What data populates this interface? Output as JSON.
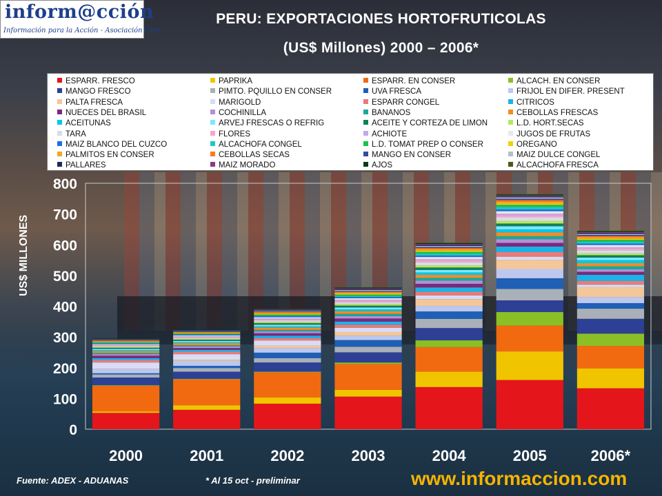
{
  "logo": {
    "name": "inform@cción",
    "tagline": "Información para la Acción - Asociación Civil"
  },
  "title_line1": "PERU: EXPORTACIONES HORTOFRUTICOLAS",
  "title_line2": "(US$ Millones) 2000 – 2006*",
  "source": "Fuente: ADEX - ADUANAS",
  "note": "* Al 15 oct - preliminar",
  "website": "www.informaccion.com",
  "chart_data": {
    "type": "bar",
    "stacked": true,
    "title": "PERU: EXPORTACIONES HORTOFRUTICOLAS (US$ Millones) 2000 – 2006*",
    "ylabel": "US$ MILLONES",
    "xlabel": "",
    "ylim": [
      0,
      800
    ],
    "yticks": [
      0,
      100,
      200,
      300,
      400,
      500,
      600,
      700,
      800
    ],
    "grid": false,
    "legend_position": "top",
    "categories": [
      "2000",
      "2001",
      "2002",
      "2003",
      "2004",
      "2005",
      "2006*"
    ],
    "series": [
      {
        "name": "ESPARR. FRESCO",
        "color": "#e4161b",
        "values": [
          53,
          63,
          83,
          106,
          137,
          160,
          133
        ]
      },
      {
        "name": "PAPRIKA",
        "color": "#f1c400",
        "values": [
          5,
          15,
          20,
          22,
          50,
          93,
          65
        ]
      },
      {
        "name": "ESPARR. EN CONSER",
        "color": "#f26a10",
        "values": [
          83,
          84,
          82,
          84,
          80,
          84,
          73
        ]
      },
      {
        "name": "ALCACH. EN CONSER",
        "color": "#8bbf26",
        "values": [
          2,
          2,
          2,
          5,
          22,
          44,
          40
        ]
      },
      {
        "name": "MANGO FRESCO",
        "color": "#2e3f96",
        "values": [
          25,
          23,
          30,
          33,
          40,
          38,
          48
        ]
      },
      {
        "name": "PIMTO. PQUILLO EN CONSER",
        "color": "#a9b0b8",
        "values": [
          10,
          12,
          14,
          18,
          30,
          37,
          33
        ]
      },
      {
        "name": "UVA FRESCA",
        "color": "#1f5fb5",
        "values": [
          4,
          7,
          18,
          22,
          24,
          35,
          18
        ]
      },
      {
        "name": "FRIJOL EN DIFER. PRESENT",
        "color": "#bcc8f0",
        "values": [
          14,
          16,
          15,
          14,
          18,
          30,
          20
        ]
      },
      {
        "name": "PALTA FRESCA",
        "color": "#f3c79a",
        "values": [
          1,
          4,
          8,
          12,
          22,
          30,
          32
        ]
      },
      {
        "name": "MARIGOLD",
        "color": "#d9dcf5",
        "values": [
          20,
          18,
          16,
          14,
          12,
          10,
          8
        ]
      },
      {
        "name": "ESPARR CONGEL",
        "color": "#e87b7b",
        "values": [
          8,
          8,
          8,
          10,
          12,
          15,
          12
        ]
      },
      {
        "name": "CITRICOS",
        "color": "#1ab3e8",
        "values": [
          6,
          6,
          8,
          10,
          14,
          18,
          20
        ]
      },
      {
        "name": "NUECES DEL BRASIL",
        "color": "#7b2a7a",
        "values": [
          8,
          6,
          8,
          10,
          12,
          12,
          10
        ]
      },
      {
        "name": "COCHINILLA",
        "color": "#b48fd8",
        "values": [
          5,
          5,
          6,
          8,
          10,
          12,
          8
        ]
      },
      {
        "name": "BANANOS",
        "color": "#1aa89a",
        "values": [
          4,
          4,
          5,
          7,
          9,
          10,
          10
        ]
      },
      {
        "name": "CEBOLLAS FRESCAS",
        "color": "#f28c28",
        "values": [
          6,
          7,
          8,
          9,
          10,
          12,
          10
        ]
      },
      {
        "name": "ACEITUNAS",
        "color": "#00c8e8",
        "values": [
          3,
          3,
          4,
          6,
          8,
          10,
          10
        ]
      },
      {
        "name": "ARVEJ FRESCAS O REFRIG",
        "color": "#7fe6ff",
        "values": [
          4,
          4,
          5,
          6,
          8,
          10,
          8
        ]
      },
      {
        "name": "ACEITE Y CORTEZA DE LIMON",
        "color": "#0f7f5a",
        "values": [
          4,
          4,
          5,
          6,
          8,
          9,
          8
        ]
      },
      {
        "name": "L.D. HORT.SECAS",
        "color": "#b5e85a",
        "values": [
          3,
          3,
          4,
          5,
          7,
          8,
          6
        ]
      },
      {
        "name": "TARA",
        "color": "#d8dce8",
        "values": [
          2,
          3,
          4,
          6,
          10,
          12,
          10
        ]
      },
      {
        "name": "FLORES",
        "color": "#f4a6c8",
        "values": [
          3,
          3,
          4,
          5,
          6,
          7,
          6
        ]
      },
      {
        "name": "ACHIOTE",
        "color": "#c8a4f0",
        "values": [
          2,
          2,
          3,
          3,
          4,
          5,
          4
        ]
      },
      {
        "name": "JUGOS DE FRUTAS",
        "color": "#e8e8e8",
        "values": [
          2,
          3,
          4,
          5,
          7,
          8,
          7
        ]
      },
      {
        "name": "MAIZ BLANCO DEL CUZCO",
        "color": "#1f6fe0",
        "values": [
          3,
          3,
          4,
          4,
          5,
          6,
          5
        ]
      },
      {
        "name": "ALCACHOFA CONGEL",
        "color": "#1ec8c8",
        "values": [
          0,
          0,
          1,
          3,
          6,
          8,
          6
        ]
      },
      {
        "name": "L.D. TOMAT PREP O CONSER",
        "color": "#17c44a",
        "values": [
          3,
          3,
          4,
          5,
          6,
          7,
          6
        ]
      },
      {
        "name": "OREGANO",
        "color": "#f4d000",
        "values": [
          2,
          2,
          3,
          3,
          4,
          4,
          3
        ]
      },
      {
        "name": "PALMITOS EN CONSER",
        "color": "#f5a623",
        "values": [
          1,
          1,
          2,
          3,
          4,
          6,
          5
        ]
      },
      {
        "name": "CEBOLLAS SECAS",
        "color": "#ff7a1a",
        "values": [
          2,
          2,
          3,
          3,
          4,
          5,
          4
        ]
      },
      {
        "name": "MANGO EN CONSER",
        "color": "#3a4a9a",
        "values": [
          1,
          2,
          2,
          3,
          4,
          5,
          4
        ]
      },
      {
        "name": "MAIZ DULCE CONGEL",
        "color": "#b8bec8",
        "values": [
          1,
          1,
          2,
          3,
          3,
          4,
          3
        ]
      },
      {
        "name": "PALLARES",
        "color": "#1a2a5a",
        "values": [
          2,
          2,
          2,
          3,
          3,
          3,
          3
        ]
      },
      {
        "name": "MAIZ MORADO",
        "color": "#8a3a8a",
        "values": [
          1,
          1,
          2,
          2,
          3,
          3,
          3
        ]
      },
      {
        "name": "AJOS",
        "color": "#0a3a1a",
        "values": [
          2,
          2,
          2,
          3,
          3,
          3,
          3
        ]
      },
      {
        "name": "ALCACHOFA FRESCA",
        "color": "#4a5a1a",
        "values": [
          0,
          0,
          1,
          1,
          2,
          2,
          2
        ]
      }
    ]
  }
}
